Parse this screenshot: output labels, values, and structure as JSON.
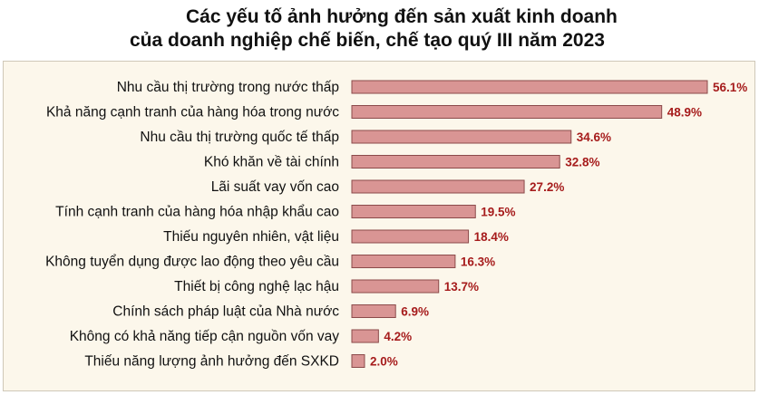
{
  "title": {
    "line1": "Các yếu tố ảnh hưởng đến sản xuất kinh doanh",
    "line2": "của doanh nghiệp chế biến, chế tạo quý III năm 2023"
  },
  "chart_data": {
    "type": "bar",
    "orientation": "horizontal",
    "title": "Các yếu tố ảnh hưởng đến sản xuất kinh doanh của doanh nghiệp chế biến, chế tạo quý III năm 2023",
    "categories": [
      "Nhu cầu thị trường trong nước thấp",
      "Khả năng cạnh tranh của hàng hóa trong nước",
      "Nhu cầu thị trường quốc tế thấp",
      "Khó khăn về tài chính",
      "Lãi suất vay vốn cao",
      "Tính cạnh tranh của hàng hóa nhập khẩu cao",
      "Thiếu nguyên nhiên, vật liệu",
      "Không tuyển dụng được lao động theo yêu cầu",
      "Thiết bị công nghệ lạc hậu",
      "Chính sách pháp luật của Nhà nước",
      "Không có khả năng tiếp cận nguồn vốn vay",
      "Thiếu năng lượng ảnh hưởng đến SXKD"
    ],
    "values": [
      56.1,
      48.9,
      34.6,
      32.8,
      27.2,
      19.5,
      18.4,
      16.3,
      13.7,
      6.9,
      4.2,
      2.0
    ],
    "value_labels": [
      "56.1%",
      "48.9%",
      "34.6%",
      "32.8%",
      "27.2%",
      "19.5%",
      "18.4%",
      "16.3%",
      "13.7%",
      "6.9%",
      "4.2%",
      "2.0%"
    ],
    "xlim": [
      0,
      56.1
    ],
    "grid": false,
    "legend": "none",
    "colors": {
      "bar_fill": "#d99594",
      "bar_stroke": "#8b4a4a",
      "value_label": "#a61c1c",
      "background": "#fcf7eb"
    }
  }
}
